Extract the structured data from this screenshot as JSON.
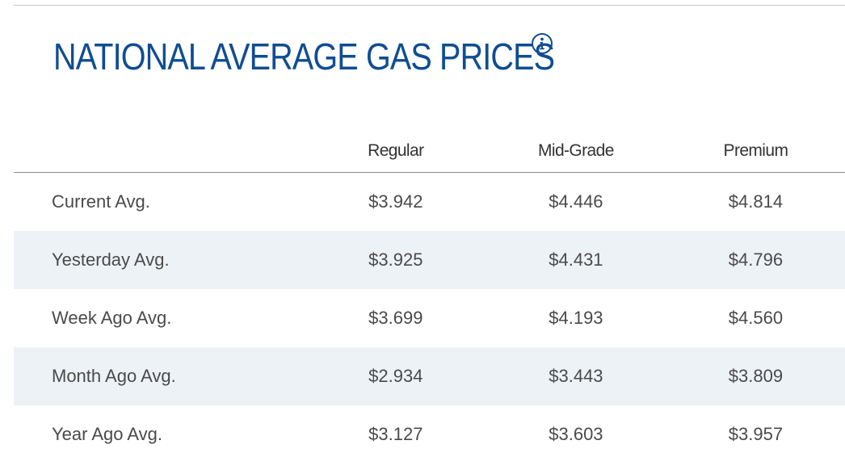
{
  "header": {
    "title": "NATIONAL AVERAGE GAS PRICES",
    "info_icon": "info-circle-icon"
  },
  "colors": {
    "title": "#0f4d92",
    "alt_row": "#edf2f7"
  },
  "table": {
    "columns": [
      "",
      "Regular",
      "Mid-Grade",
      "Premium"
    ],
    "rows": [
      {
        "label": "Current Avg.",
        "regular": "$3.942",
        "mid_grade": "$4.446",
        "premium": "$4.814"
      },
      {
        "label": "Yesterday Avg.",
        "regular": "$3.925",
        "mid_grade": "$4.431",
        "premium": "$4.796"
      },
      {
        "label": "Week Ago Avg.",
        "regular": "$3.699",
        "mid_grade": "$4.193",
        "premium": "$4.560"
      },
      {
        "label": "Month Ago Avg.",
        "regular": "$2.934",
        "mid_grade": "$3.443",
        "premium": "$3.809"
      },
      {
        "label": "Year Ago Avg.",
        "regular": "$3.127",
        "mid_grade": "$3.603",
        "premium": "$3.957"
      }
    ]
  }
}
